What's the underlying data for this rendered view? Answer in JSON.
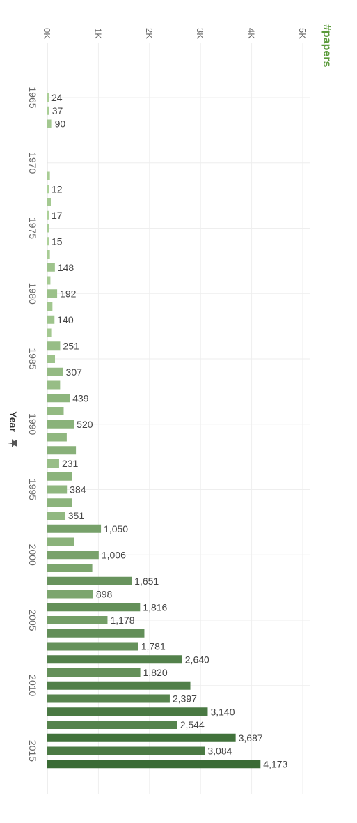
{
  "chart_data": {
    "type": "bar",
    "orientation": "horizontal",
    "xlabel": "#papers",
    "ylabel": "Year",
    "ylabel_icon": "pin-icon",
    "xlim": [
      0,
      5000
    ],
    "x_ticks": [
      "0K",
      "1K",
      "2K",
      "3K",
      "4K",
      "5K"
    ],
    "x_tick_values": [
      0,
      1000,
      2000,
      3000,
      4000,
      5000
    ],
    "y_tick_labels": [
      "1965",
      "1970",
      "1975",
      "1980",
      "1985",
      "1990",
      "1995",
      "2000",
      "2005",
      "2010",
      "2015"
    ],
    "y_tick_years": [
      1965,
      1970,
      1975,
      1980,
      1985,
      1990,
      1995,
      2000,
      2005,
      2010,
      2015
    ],
    "year_range": [
      1962,
      2018
    ],
    "grid": true,
    "color_low": "#b5d8a0",
    "color_high": "#3a6b35",
    "categories": [
      1965,
      1966,
      1967,
      1971,
      1972,
      1973,
      1974,
      1975,
      1976,
      1977,
      1978,
      1979,
      1980,
      1981,
      1982,
      1983,
      1984,
      1985,
      1986,
      1987,
      1988,
      1989,
      1990,
      1991,
      1992,
      1993,
      1994,
      1995,
      1996,
      1997,
      1998,
      1999,
      2000,
      2001,
      2002,
      2003,
      2004,
      2005,
      2006,
      2007,
      2008,
      2009,
      2010,
      2011,
      2012,
      2013,
      2014,
      2015,
      2016,
      2017,
      2018
    ],
    "values": [
      24,
      37,
      90,
      50,
      12,
      80,
      17,
      40,
      15,
      50,
      148,
      60,
      192,
      100,
      140,
      90,
      251,
      150,
      307,
      250,
      439,
      320,
      520,
      380,
      560,
      231,
      490,
      384,
      490,
      351,
      1050,
      520,
      1006,
      880,
      1651,
      898,
      1816,
      1178,
      1900,
      1781,
      2640,
      1820,
      2800,
      2397,
      3140,
      2544,
      3687,
      3084,
      4173,
      0,
      0
    ],
    "data_labels": [
      "24",
      "37",
      "90",
      "",
      "12",
      "",
      "17",
      "",
      "15",
      "",
      "148",
      "",
      "192",
      "",
      "140",
      "",
      "251",
      "",
      "307",
      "",
      "439",
      "",
      "520",
      "",
      "",
      "231",
      "",
      "384",
      "",
      "351",
      "1,050",
      "",
      "1,006",
      "",
      "1,651",
      "898",
      "1,816",
      "1,178",
      "",
      "1,781",
      "2,640",
      "1,820",
      "",
      "2,397",
      "3,140",
      "2,544",
      "3,687",
      "3,084",
      "4,173",
      "",
      ""
    ]
  }
}
